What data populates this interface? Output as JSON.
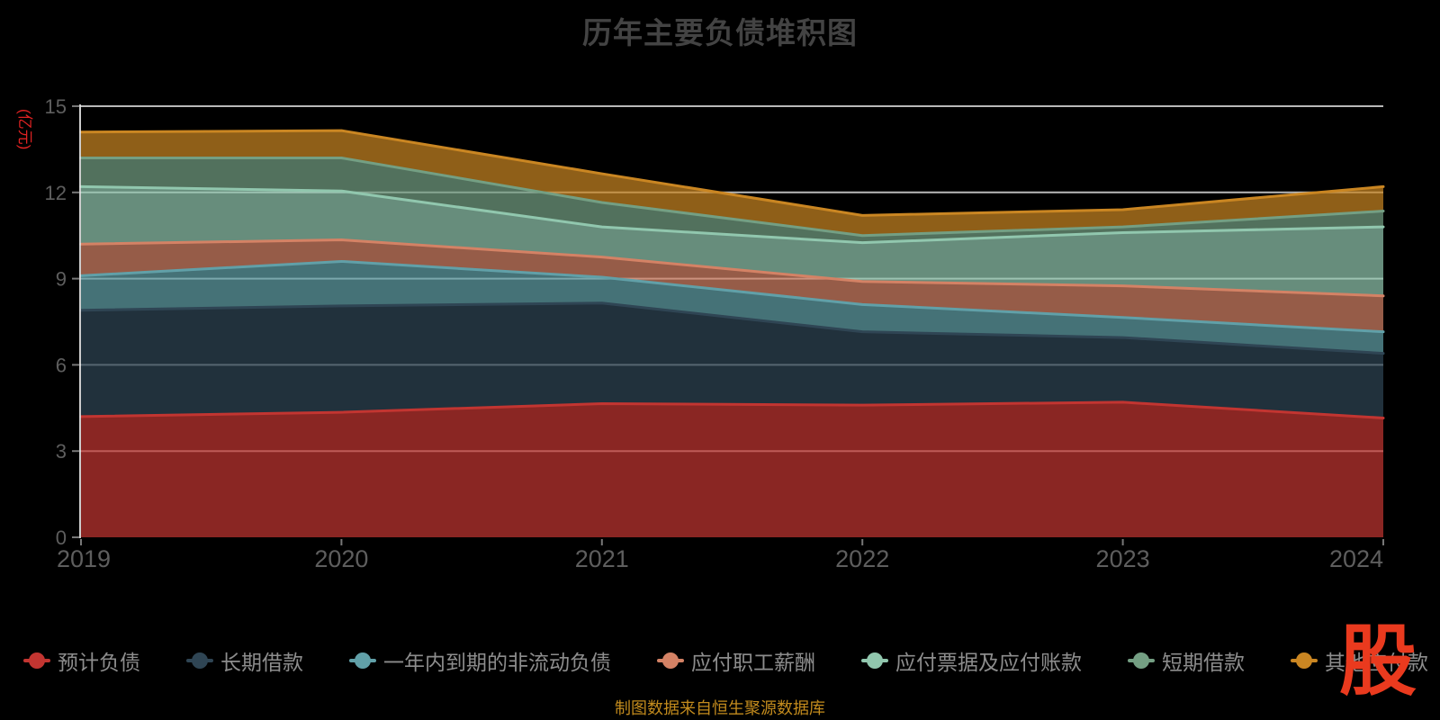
{
  "watermark": {
    "text": "股"
  },
  "chart_data": {
    "type": "area",
    "stacked": true,
    "title": "历年主要负债堆积图",
    "unit_label": "(亿元)",
    "footer": "制图数据来自恒生聚源数据库",
    "x": [
      "2019",
      "2020",
      "2021",
      "2022",
      "2023",
      "2024"
    ],
    "xlabel": "",
    "ylabel": "亿元",
    "ylim": [
      0,
      15
    ],
    "yticks": [
      0,
      3,
      6,
      9,
      12,
      15
    ],
    "grid": true,
    "legend_position": "bottom",
    "background": "#000000",
    "gridline_color": "#d9d9d9",
    "axis_label_color": "#5e5e5e",
    "legend_text_color": "#8d8d8d",
    "title_color": "#434343",
    "unit_label_color": "#e02222",
    "footer_color": "#c38b1d",
    "watermark_color": "#ea3a1e",
    "fill_opacity": 0.71,
    "series": [
      {
        "name": "预计负债",
        "color": "#c23531",
        "values": [
          4.2,
          4.35,
          4.65,
          4.6,
          4.7,
          4.15
        ]
      },
      {
        "name": "长期借款",
        "color": "#2f4554",
        "values": [
          3.7,
          3.7,
          3.5,
          2.55,
          2.25,
          2.25
        ]
      },
      {
        "name": "一年内到期的非流动负债",
        "color": "#61a0a8",
        "values": [
          1.2,
          1.55,
          0.9,
          0.95,
          0.7,
          0.75
        ]
      },
      {
        "name": "应付职工薪酬",
        "color": "#d48265",
        "values": [
          1.1,
          0.75,
          0.7,
          0.8,
          1.1,
          1.25
        ]
      },
      {
        "name": "应付票据及应付账款",
        "color": "#91c7ae",
        "values": [
          2.0,
          1.7,
          1.05,
          1.35,
          1.85,
          2.4
        ]
      },
      {
        "name": "短期借款",
        "color": "#749f83",
        "values": [
          1.0,
          1.15,
          0.85,
          0.25,
          0.2,
          0.55
        ]
      },
      {
        "name": "其他应付款",
        "color": "#ca8622",
        "values": [
          0.9,
          0.95,
          1.0,
          0.7,
          0.6,
          0.85
        ]
      }
    ]
  }
}
